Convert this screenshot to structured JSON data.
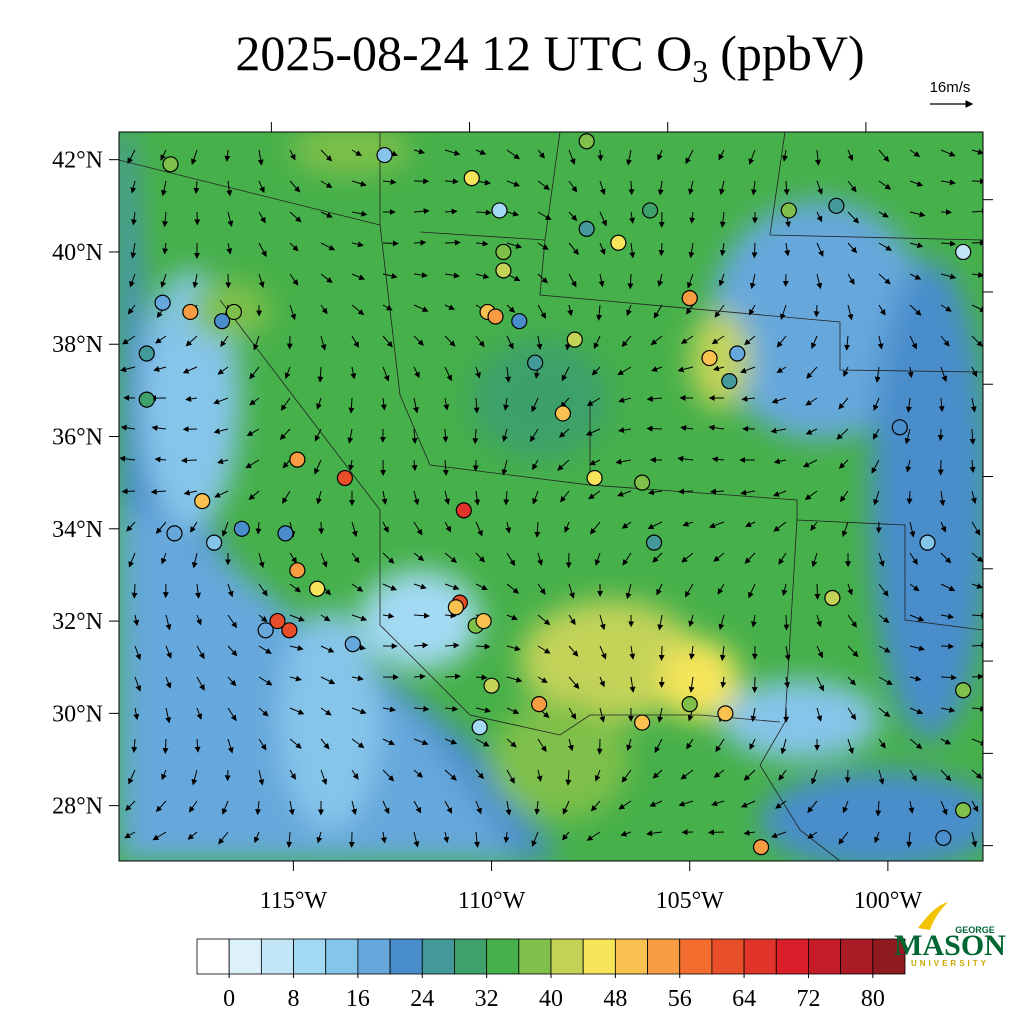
{
  "title": {
    "prefix": "2025-08-24 12 UTC O",
    "subscript": "3",
    "suffix": "(ppbV)"
  },
  "wind_reference": "16m/s",
  "map": {
    "lonlim": [
      -119.4,
      -97.6
    ],
    "latlim": [
      26.8,
      42.6
    ],
    "lat_ticks": [
      {
        "value": 42,
        "label": "42°N"
      },
      {
        "value": 40,
        "label": "40°N"
      },
      {
        "value": 38,
        "label": "38°N"
      },
      {
        "value": 36,
        "label": "36°N"
      },
      {
        "value": 34,
        "label": "34°N"
      },
      {
        "value": 32,
        "label": "32°N"
      },
      {
        "value": 30,
        "label": "30°N"
      },
      {
        "value": 28,
        "label": "28°N"
      }
    ],
    "lon_ticks": [
      {
        "value": -115,
        "label": "115°W"
      },
      {
        "value": -110,
        "label": "110°W"
      },
      {
        "value": -105,
        "label": "105°W"
      },
      {
        "value": -100,
        "label": "100°W"
      }
    ]
  },
  "colorbar": {
    "vmin": -4,
    "vmax": 84,
    "colors": [
      "#ffffff",
      "#ddf1fb",
      "#c2e6f7",
      "#a3d9f3",
      "#86c5ea",
      "#66a8dc",
      "#4a8dcb",
      "#449a9a",
      "#3ea06a",
      "#46b04a",
      "#7ec04a",
      "#c3d358",
      "#f6e55a",
      "#f8c150",
      "#f79c42",
      "#f36e2e",
      "#e94e2b",
      "#e1342a",
      "#d81f2a",
      "#c41d28",
      "#aa1b25",
      "#8f1a20"
    ],
    "ticks": [
      0,
      8,
      16,
      24,
      32,
      40,
      48,
      56,
      64,
      72,
      80
    ]
  },
  "stations": [
    {
      "lon": -118.1,
      "lat": 41.9,
      "value": 38
    },
    {
      "lon": -117.6,
      "lat": 38.7,
      "value": 54
    },
    {
      "lon": -118.3,
      "lat": 38.9,
      "value": 18
    },
    {
      "lon": -116.5,
      "lat": 38.7,
      "value": 38
    },
    {
      "lon": -116.8,
      "lat": 38.5,
      "value": 22
    },
    {
      "lon": -114.9,
      "lat": 35.5,
      "value": 52
    },
    {
      "lon": -113.7,
      "lat": 35.1,
      "value": 60
    },
    {
      "lon": -117.3,
      "lat": 34.6,
      "value": 50
    },
    {
      "lon": -116.3,
      "lat": 34.0,
      "value": 20
    },
    {
      "lon": -115.2,
      "lat": 33.9,
      "value": 20
    },
    {
      "lon": -114.9,
      "lat": 33.1,
      "value": 54
    },
    {
      "lon": -115.4,
      "lat": 32.0,
      "value": 60
    },
    {
      "lon": -115.1,
      "lat": 31.8,
      "value": 60
    },
    {
      "lon": -115.7,
      "lat": 31.8,
      "value": 16
    },
    {
      "lon": -113.5,
      "lat": 31.5,
      "value": 16
    },
    {
      "lon": -112.7,
      "lat": 42.1,
      "value": 14
    },
    {
      "lon": -110.5,
      "lat": 41.6,
      "value": 46
    },
    {
      "lon": -109.8,
      "lat": 40.9,
      "value": 8
    },
    {
      "lon": -109.7,
      "lat": 40.0,
      "value": 36
    },
    {
      "lon": -110.1,
      "lat": 38.7,
      "value": 48
    },
    {
      "lon": -109.9,
      "lat": 38.6,
      "value": 54
    },
    {
      "lon": -109.7,
      "lat": 39.6,
      "value": 42
    },
    {
      "lon": -109.3,
      "lat": 38.5,
      "value": 22
    },
    {
      "lon": -107.9,
      "lat": 38.1,
      "value": 40
    },
    {
      "lon": -108.9,
      "lat": 37.6,
      "value": 24
    },
    {
      "lon": -110.7,
      "lat": 34.4,
      "value": 64
    },
    {
      "lon": -110.8,
      "lat": 32.4,
      "value": 60
    },
    {
      "lon": -110.9,
      "lat": 32.3,
      "value": 48
    },
    {
      "lon": -110.4,
      "lat": 31.9,
      "value": 36
    },
    {
      "lon": -110.2,
      "lat": 32.0,
      "value": 50
    },
    {
      "lon": -110.3,
      "lat": 29.7,
      "value": 8
    },
    {
      "lon": -110.0,
      "lat": 30.6,
      "value": 40
    },
    {
      "lon": -108.8,
      "lat": 30.2,
      "value": 56
    },
    {
      "lon": -107.6,
      "lat": 42.4,
      "value": 36
    },
    {
      "lon": -107.6,
      "lat": 40.5,
      "value": 24
    },
    {
      "lon": -106.8,
      "lat": 40.2,
      "value": 44
    },
    {
      "lon": -106.0,
      "lat": 40.9,
      "value": 28
    },
    {
      "lon": -105.0,
      "lat": 39.0,
      "value": 56
    },
    {
      "lon": -104.5,
      "lat": 37.7,
      "value": 48
    },
    {
      "lon": -103.8,
      "lat": 37.8,
      "value": 16
    },
    {
      "lon": -104.0,
      "lat": 37.2,
      "value": 24
    },
    {
      "lon": -108.2,
      "lat": 36.5,
      "value": 48
    },
    {
      "lon": -107.4,
      "lat": 35.1,
      "value": 44
    },
    {
      "lon": -106.2,
      "lat": 35.0,
      "value": 36
    },
    {
      "lon": -105.9,
      "lat": 33.7,
      "value": 24
    },
    {
      "lon": -105.0,
      "lat": 30.2,
      "value": 36
    },
    {
      "lon": -104.1,
      "lat": 30.0,
      "value": 50
    },
    {
      "lon": -106.2,
      "lat": 29.8,
      "value": 48
    },
    {
      "lon": -103.2,
      "lat": 27.1,
      "value": 54
    },
    {
      "lon": -101.4,
      "lat": 32.5,
      "value": 40
    },
    {
      "lon": -99.0,
      "lat": 33.7,
      "value": 14
    },
    {
      "lon": -99.7,
      "lat": 36.2,
      "value": 20
    },
    {
      "lon": -102.5,
      "lat": 40.9,
      "value": 38
    },
    {
      "lon": -101.3,
      "lat": 41.0,
      "value": 24
    },
    {
      "lon": -98.1,
      "lat": 40.0,
      "value": 6
    },
    {
      "lon": -98.1,
      "lat": 30.5,
      "value": 38
    },
    {
      "lon": -98.1,
      "lat": 27.9,
      "value": 38
    },
    {
      "lon": -98.6,
      "lat": 27.3,
      "value": 20
    },
    {
      "lon": -118.7,
      "lat": 37.8,
      "value": 24
    },
    {
      "lon": -118.7,
      "lat": 36.8,
      "value": 28
    },
    {
      "lon": -118.0,
      "lat": 33.9,
      "value": 18
    },
    {
      "lon": -117.0,
      "lat": 33.7,
      "value": 14
    },
    {
      "lon": -114.4,
      "lat": 32.7,
      "value": 44
    }
  ],
  "logo": {
    "top": "GEORGE",
    "main": "MASON",
    "bottom": "UNIVERSITY"
  }
}
